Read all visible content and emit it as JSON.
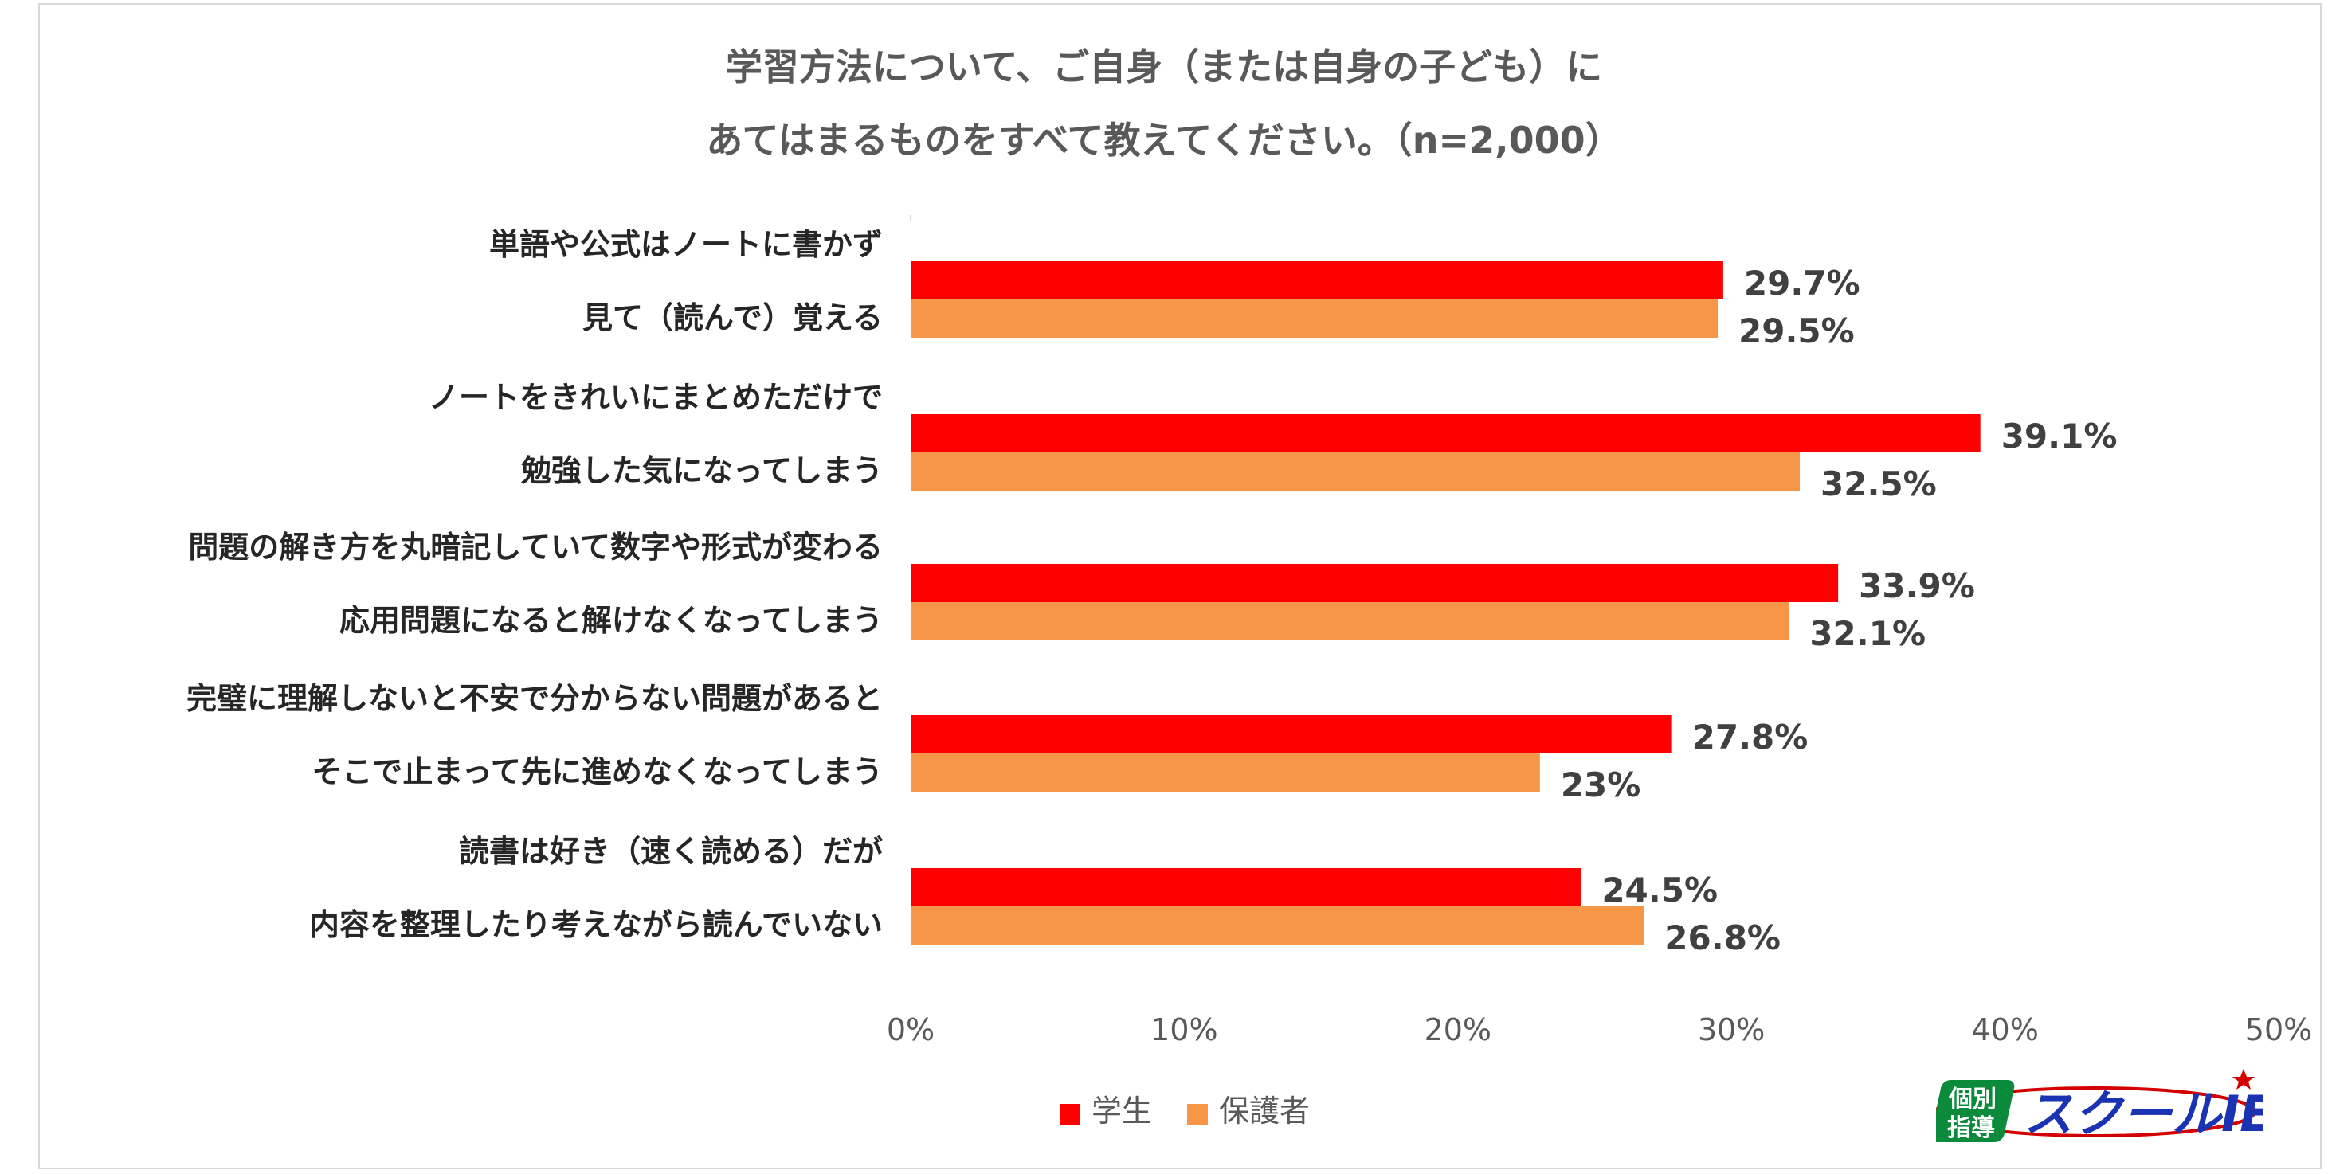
{
  "chart_data": {
    "type": "bar",
    "orientation": "horizontal",
    "title_lines": [
      "学習方法について、ご自身（または自身の子ども）に",
      "あてはまるものをすべて教えてください。（n=2,000）"
    ],
    "categories": [
      [
        "単語や公式はノートに書かず",
        "見て（読んで）覚える"
      ],
      [
        "ノートをきれいにまとめただけで",
        "勉強した気になってしまう"
      ],
      [
        "問題の解き方を丸暗記していて数字や形式が変わる",
        "応用問題になると解けなくなってしまう"
      ],
      [
        "完璧に理解しないと不安で分からない問題があると",
        "そこで止まって先に進めなくなってしまう"
      ],
      [
        "読書は好き（速く読める）だが",
        "内容を整理したり考えながら読んでいない"
      ]
    ],
    "series": [
      {
        "name": "学生",
        "color": "#ff0000",
        "values": [
          29.7,
          39.1,
          33.9,
          27.8,
          24.5
        ],
        "labels": [
          "29.7%",
          "39.1%",
          "33.9%",
          "27.8%",
          "24.5%"
        ]
      },
      {
        "name": "保護者",
        "color": "#f79646",
        "values": [
          29.5,
          32.5,
          32.1,
          23,
          26.8
        ],
        "labels": [
          "29.5%",
          "32.5%",
          "32.1%",
          "23%",
          "26.8%"
        ]
      }
    ],
    "xlim": [
      0,
      50
    ],
    "xticks": [
      "0%",
      "10%",
      "20%",
      "30%",
      "40%",
      "50%"
    ],
    "legend_position": "bottom"
  },
  "logo": {
    "line1": "個別",
    "line2": "指導",
    "brand": "スクールIE"
  }
}
